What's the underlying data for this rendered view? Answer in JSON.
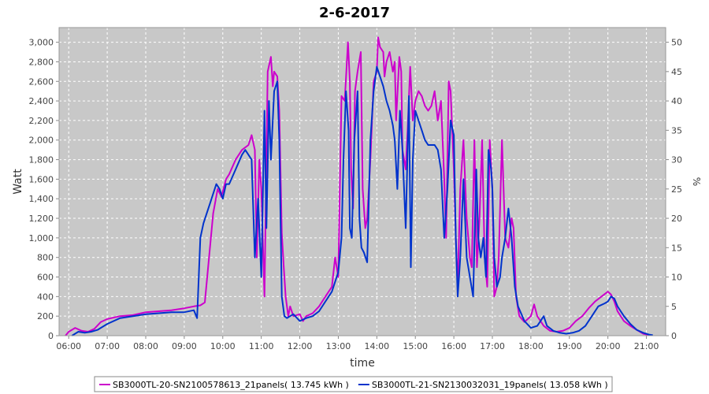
{
  "chart_data": {
    "type": "line",
    "title": "2-6-2017",
    "xlabel": "time",
    "ylabel": "Watt",
    "y2label": "%",
    "xlim": [
      "05:45",
      "21:30"
    ],
    "ylim": [
      0,
      3150
    ],
    "y2lim": [
      0,
      52.5
    ],
    "x_ticks": [
      "06:00",
      "07:00",
      "08:00",
      "09:00",
      "10:00",
      "11:00",
      "12:00",
      "13:00",
      "14:00",
      "15:00",
      "16:00",
      "17:00",
      "18:00",
      "19:00",
      "20:00",
      "21:00"
    ],
    "y_ticks": [
      "0",
      "200",
      "400",
      "600",
      "800",
      "1,000",
      "1,200",
      "1,400",
      "1,600",
      "1,800",
      "2,000",
      "2,200",
      "2,400",
      "2,600",
      "2,800",
      "3,000"
    ],
    "y2_ticks": [
      "0",
      "5",
      "10",
      "15",
      "20",
      "25",
      "30",
      "35",
      "40",
      "45",
      "50"
    ],
    "grid": true,
    "legend_position": "bottom",
    "background_color": "#c8c8c8",
    "series": [
      {
        "name": "SB3000TL-20-SN2100578613_21panels( 13.745 kWh )",
        "color": "#cc00cc",
        "points": [
          [
            "05:55",
            0
          ],
          [
            "06:00",
            40
          ],
          [
            "06:10",
            80
          ],
          [
            "06:20",
            50
          ],
          [
            "06:30",
            40
          ],
          [
            "06:40",
            70
          ],
          [
            "06:50",
            140
          ],
          [
            "07:00",
            170
          ],
          [
            "07:20",
            200
          ],
          [
            "07:40",
            210
          ],
          [
            "08:00",
            240
          ],
          [
            "08:20",
            250
          ],
          [
            "08:40",
            260
          ],
          [
            "09:00",
            280
          ],
          [
            "09:15",
            300
          ],
          [
            "09:25",
            310
          ],
          [
            "09:32",
            340
          ],
          [
            "09:45",
            1250
          ],
          [
            "09:52",
            1500
          ],
          [
            "09:58",
            1420
          ],
          [
            "10:05",
            1600
          ],
          [
            "10:10",
            1650
          ],
          [
            "10:20",
            1800
          ],
          [
            "10:30",
            1900
          ],
          [
            "10:40",
            1950
          ],
          [
            "10:45",
            2050
          ],
          [
            "10:50",
            1900
          ],
          [
            "10:53",
            800
          ],
          [
            "10:57",
            1800
          ],
          [
            "11:00",
            1500
          ],
          [
            "11:05",
            400
          ],
          [
            "11:10",
            2700
          ],
          [
            "11:15",
            2850
          ],
          [
            "11:18",
            2550
          ],
          [
            "11:20",
            2700
          ],
          [
            "11:25",
            2650
          ],
          [
            "11:28",
            2300
          ],
          [
            "11:32",
            1050
          ],
          [
            "11:35",
            700
          ],
          [
            "11:38",
            400
          ],
          [
            "11:42",
            200
          ],
          [
            "11:45",
            300
          ],
          [
            "11:50",
            200
          ],
          [
            "12:00",
            220
          ],
          [
            "12:05",
            150
          ],
          [
            "12:10",
            200
          ],
          [
            "12:20",
            230
          ],
          [
            "12:30",
            300
          ],
          [
            "12:40",
            400
          ],
          [
            "12:50",
            500
          ],
          [
            "12:55",
            800
          ],
          [
            "13:00",
            600
          ],
          [
            "13:05",
            2450
          ],
          [
            "13:10",
            2400
          ],
          [
            "13:15",
            3000
          ],
          [
            "13:18",
            2600
          ],
          [
            "13:20",
            1700
          ],
          [
            "13:23",
            1300
          ],
          [
            "13:26",
            2500
          ],
          [
            "13:30",
            2700
          ],
          [
            "13:35",
            2900
          ],
          [
            "13:38",
            1500
          ],
          [
            "13:42",
            1100
          ],
          [
            "13:45",
            1200
          ],
          [
            "13:50",
            1800
          ],
          [
            "13:55",
            2600
          ],
          [
            "14:00",
            2700
          ],
          [
            "14:02",
            3050
          ],
          [
            "14:05",
            2950
          ],
          [
            "14:10",
            2900
          ],
          [
            "14:12",
            2650
          ],
          [
            "14:15",
            2800
          ],
          [
            "14:20",
            2900
          ],
          [
            "14:25",
            2700
          ],
          [
            "14:28",
            2800
          ],
          [
            "14:30",
            2200
          ],
          [
            "14:35",
            2850
          ],
          [
            "14:38",
            2700
          ],
          [
            "14:40",
            1900
          ],
          [
            "14:45",
            1700
          ],
          [
            "14:48",
            2100
          ],
          [
            "14:52",
            2750
          ],
          [
            "14:56",
            2200
          ],
          [
            "15:00",
            2400
          ],
          [
            "15:05",
            2500
          ],
          [
            "15:10",
            2450
          ],
          [
            "15:15",
            2350
          ],
          [
            "15:20",
            2300
          ],
          [
            "15:25",
            2350
          ],
          [
            "15:30",
            2500
          ],
          [
            "15:35",
            2200
          ],
          [
            "15:40",
            2400
          ],
          [
            "15:45",
            1600
          ],
          [
            "15:48",
            1000
          ],
          [
            "15:52",
            2600
          ],
          [
            "15:55",
            2500
          ],
          [
            "16:00",
            1700
          ],
          [
            "16:03",
            1000
          ],
          [
            "16:06",
            500
          ],
          [
            "16:10",
            1500
          ],
          [
            "16:15",
            2000
          ],
          [
            "16:20",
            1200
          ],
          [
            "16:25",
            800
          ],
          [
            "16:28",
            700
          ],
          [
            "16:32",
            2000
          ],
          [
            "16:36",
            700
          ],
          [
            "16:40",
            1200
          ],
          [
            "16:44",
            2000
          ],
          [
            "16:48",
            800
          ],
          [
            "16:52",
            500
          ],
          [
            "16:56",
            2000
          ],
          [
            "17:00",
            1500
          ],
          [
            "17:03",
            400
          ],
          [
            "17:07",
            500
          ],
          [
            "17:10",
            800
          ],
          [
            "17:15",
            2000
          ],
          [
            "17:20",
            1000
          ],
          [
            "17:25",
            900
          ],
          [
            "17:30",
            1200
          ],
          [
            "17:33",
            1100
          ],
          [
            "17:37",
            400
          ],
          [
            "17:42",
            200
          ],
          [
            "17:50",
            140
          ],
          [
            "18:00",
            200
          ],
          [
            "18:05",
            320
          ],
          [
            "18:10",
            200
          ],
          [
            "18:20",
            100
          ],
          [
            "18:30",
            50
          ],
          [
            "18:40",
            40
          ],
          [
            "18:50",
            50
          ],
          [
            "19:00",
            80
          ],
          [
            "19:10",
            150
          ],
          [
            "19:20",
            200
          ],
          [
            "19:30",
            280
          ],
          [
            "19:40",
            350
          ],
          [
            "19:50",
            400
          ],
          [
            "20:00",
            450
          ],
          [
            "20:05",
            420
          ],
          [
            "20:10",
            350
          ],
          [
            "20:15",
            250
          ],
          [
            "20:25",
            150
          ],
          [
            "20:35",
            100
          ],
          [
            "20:45",
            60
          ],
          [
            "20:55",
            20
          ],
          [
            "21:05",
            5
          ]
        ]
      },
      {
        "name": "SB3000TL-21-SN2130032031_19panels( 13.058 kWh )",
        "color": "#0033cc",
        "points": [
          [
            "06:05",
            0
          ],
          [
            "06:15",
            40
          ],
          [
            "06:25",
            30
          ],
          [
            "06:35",
            40
          ],
          [
            "06:45",
            60
          ],
          [
            "07:00",
            120
          ],
          [
            "07:20",
            180
          ],
          [
            "07:40",
            200
          ],
          [
            "08:00",
            220
          ],
          [
            "08:20",
            230
          ],
          [
            "08:40",
            240
          ],
          [
            "09:00",
            240
          ],
          [
            "09:15",
            260
          ],
          [
            "09:20",
            180
          ],
          [
            "09:25",
            1000
          ],
          [
            "09:30",
            1150
          ],
          [
            "09:35",
            1250
          ],
          [
            "09:40",
            1350
          ],
          [
            "09:50",
            1550
          ],
          [
            "09:55",
            1500
          ],
          [
            "10:00",
            1400
          ],
          [
            "10:05",
            1550
          ],
          [
            "10:10",
            1550
          ],
          [
            "10:20",
            1700
          ],
          [
            "10:30",
            1850
          ],
          [
            "10:35",
            1900
          ],
          [
            "10:45",
            1800
          ],
          [
            "10:50",
            800
          ],
          [
            "10:55",
            1400
          ],
          [
            "11:00",
            600
          ],
          [
            "11:05",
            2300
          ],
          [
            "11:08",
            1100
          ],
          [
            "11:12",
            2400
          ],
          [
            "11:15",
            1800
          ],
          [
            "11:20",
            2500
          ],
          [
            "11:25",
            2600
          ],
          [
            "11:28",
            2000
          ],
          [
            "11:32",
            400
          ],
          [
            "11:36",
            200
          ],
          [
            "11:40",
            180
          ],
          [
            "11:50",
            220
          ],
          [
            "12:00",
            150
          ],
          [
            "12:10",
            180
          ],
          [
            "12:20",
            200
          ],
          [
            "12:30",
            250
          ],
          [
            "12:40",
            350
          ],
          [
            "12:50",
            450
          ],
          [
            "13:00",
            650
          ],
          [
            "13:05",
            1000
          ],
          [
            "13:08",
            1800
          ],
          [
            "13:12",
            2500
          ],
          [
            "13:16",
            2100
          ],
          [
            "13:18",
            1100
          ],
          [
            "13:21",
            1000
          ],
          [
            "13:25",
            2000
          ],
          [
            "13:30",
            2500
          ],
          [
            "13:33",
            1200
          ],
          [
            "13:36",
            900
          ],
          [
            "13:40",
            850
          ],
          [
            "13:45",
            750
          ],
          [
            "13:50",
            2000
          ],
          [
            "13:55",
            2500
          ],
          [
            "14:00",
            2750
          ],
          [
            "14:05",
            2650
          ],
          [
            "14:10",
            2550
          ],
          [
            "14:15",
            2400
          ],
          [
            "14:20",
            2300
          ],
          [
            "14:25",
            2150
          ],
          [
            "14:28",
            2000
          ],
          [
            "14:32",
            1500
          ],
          [
            "14:36",
            2300
          ],
          [
            "14:40",
            1900
          ],
          [
            "14:45",
            1100
          ],
          [
            "14:50",
            2450
          ],
          [
            "14:53",
            700
          ],
          [
            "14:56",
            1800
          ],
          [
            "15:00",
            2300
          ],
          [
            "15:05",
            2200
          ],
          [
            "15:10",
            2100
          ],
          [
            "15:15",
            2000
          ],
          [
            "15:20",
            1950
          ],
          [
            "15:30",
            1950
          ],
          [
            "15:35",
            1900
          ],
          [
            "15:40",
            1700
          ],
          [
            "15:45",
            1000
          ],
          [
            "15:50",
            1500
          ],
          [
            "15:55",
            2200
          ],
          [
            "16:00",
            2050
          ],
          [
            "16:03",
            1000
          ],
          [
            "16:06",
            400
          ],
          [
            "16:10",
            800
          ],
          [
            "16:15",
            1600
          ],
          [
            "16:20",
            800
          ],
          [
            "16:25",
            600
          ],
          [
            "16:30",
            400
          ],
          [
            "16:35",
            1700
          ],
          [
            "16:38",
            1000
          ],
          [
            "16:42",
            800
          ],
          [
            "16:46",
            1000
          ],
          [
            "16:50",
            600
          ],
          [
            "16:54",
            1900
          ],
          [
            "16:58",
            1700
          ],
          [
            "17:00",
            1500
          ],
          [
            "17:03",
            800
          ],
          [
            "17:07",
            500
          ],
          [
            "17:12",
            600
          ],
          [
            "17:15",
            800
          ],
          [
            "17:20",
            1000
          ],
          [
            "17:25",
            1300
          ],
          [
            "17:30",
            1000
          ],
          [
            "17:35",
            500
          ],
          [
            "17:40",
            300
          ],
          [
            "17:50",
            150
          ],
          [
            "18:00",
            80
          ],
          [
            "18:10",
            100
          ],
          [
            "18:15",
            150
          ],
          [
            "18:20",
            200
          ],
          [
            "18:25",
            100
          ],
          [
            "18:35",
            50
          ],
          [
            "18:45",
            30
          ],
          [
            "18:55",
            20
          ],
          [
            "19:05",
            30
          ],
          [
            "19:15",
            50
          ],
          [
            "19:25",
            100
          ],
          [
            "19:35",
            200
          ],
          [
            "19:45",
            300
          ],
          [
            "19:55",
            330
          ],
          [
            "20:00",
            350
          ],
          [
            "20:05",
            400
          ],
          [
            "20:10",
            380
          ],
          [
            "20:15",
            300
          ],
          [
            "20:25",
            200
          ],
          [
            "20:35",
            120
          ],
          [
            "20:45",
            60
          ],
          [
            "20:55",
            30
          ],
          [
            "21:05",
            10
          ],
          [
            "21:10",
            5
          ]
        ]
      }
    ]
  }
}
